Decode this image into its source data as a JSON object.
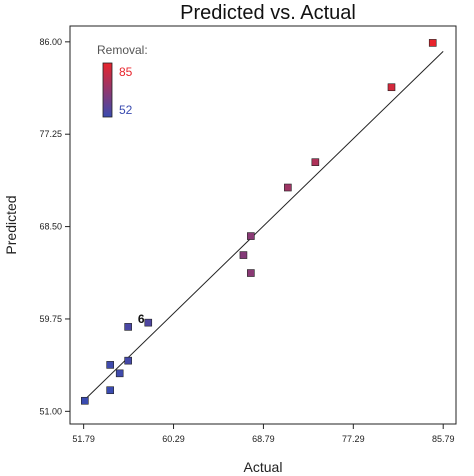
{
  "chart_data": {
    "type": "scatter",
    "title": "Predicted vs. Actual",
    "xlabel": "Actual",
    "ylabel": "Predicted",
    "xlim": [
      50.5,
      87.0
    ],
    "ylim": [
      49.8,
      87.5
    ],
    "x_ticks": [
      51.79,
      60.29,
      68.79,
      77.29,
      85.79
    ],
    "x_tick_labels": [
      "51.79",
      "60.29",
      "68.79",
      "77.29",
      "85.79"
    ],
    "y_ticks": [
      51.0,
      59.75,
      68.5,
      77.25,
      86.0
    ],
    "y_tick_labels": [
      "51.00",
      "59.75",
      "68.50",
      "77.25",
      "86.00"
    ],
    "grid": false,
    "fit_line": {
      "x": [
        51.79,
        85.79
      ],
      "y": [
        52.0,
        85.1
      ]
    },
    "legend": {
      "title": "Removal:",
      "max_label": "85",
      "min_label": "52",
      "max_value": 85,
      "min_value": 52,
      "high_color": "#e8242c",
      "low_color": "#3a4bb0",
      "placement": "top-left"
    },
    "annotation": {
      "text": "6",
      "x": 57.3,
      "y": 59.2
    },
    "points": [
      {
        "x": 51.9,
        "y": 52.0,
        "removal": 52
      },
      {
        "x": 54.3,
        "y": 53.0,
        "removal": 52
      },
      {
        "x": 54.3,
        "y": 55.4,
        "removal": 53
      },
      {
        "x": 55.2,
        "y": 54.6,
        "removal": 53
      },
      {
        "x": 56.0,
        "y": 55.8,
        "removal": 54
      },
      {
        "x": 56.0,
        "y": 59.0,
        "removal": 55
      },
      {
        "x": 57.9,
        "y": 59.4,
        "removal": 56
      },
      {
        "x": 66.9,
        "y": 65.8,
        "removal": 66
      },
      {
        "x": 67.6,
        "y": 64.1,
        "removal": 67
      },
      {
        "x": 67.6,
        "y": 67.6,
        "removal": 67
      },
      {
        "x": 71.1,
        "y": 72.2,
        "removal": 71
      },
      {
        "x": 73.7,
        "y": 74.6,
        "removal": 74
      },
      {
        "x": 80.9,
        "y": 81.7,
        "removal": 81
      },
      {
        "x": 84.8,
        "y": 85.9,
        "removal": 85
      }
    ]
  }
}
